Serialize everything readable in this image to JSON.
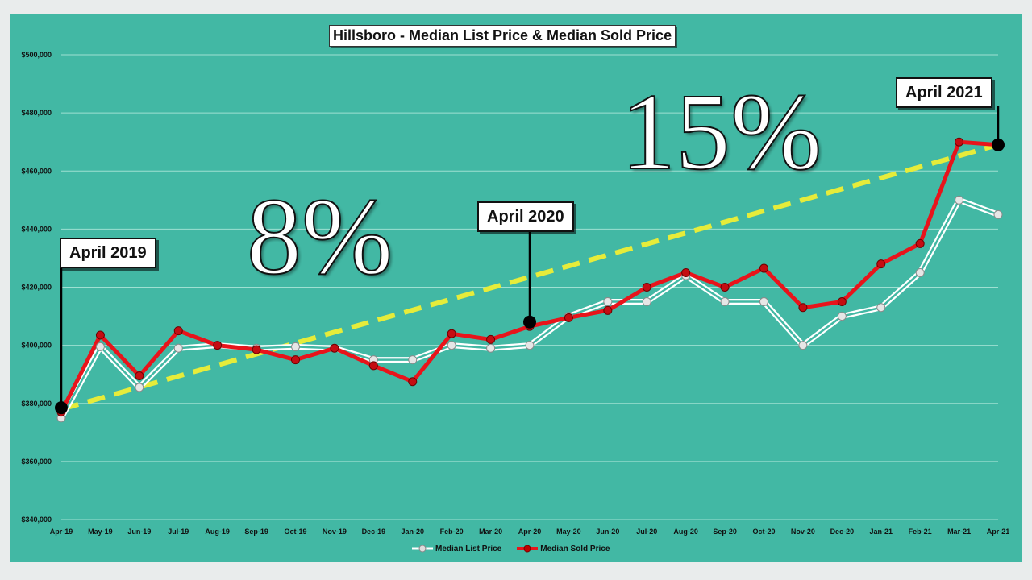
{
  "chart_data": {
    "type": "line",
    "title": "Hillsboro - Median List Price & Median Sold Price",
    "xlabel": "",
    "ylabel": "",
    "categories": [
      "Apr-19",
      "May-19",
      "Jun-19",
      "Jul-19",
      "Aug-19",
      "Sep-19",
      "Oct-19",
      "Nov-19",
      "Dec-19",
      "Jan-20",
      "Feb-20",
      "Mar-20",
      "Apr-20",
      "May-20",
      "Jun-20",
      "Jul-20",
      "Aug-20",
      "Sep-20",
      "Oct-20",
      "Nov-20",
      "Dec-20",
      "Jan-21",
      "Feb-21",
      "Mar-21",
      "Apr-21"
    ],
    "ylim": [
      340000,
      500000
    ],
    "yticks": [
      340000,
      360000,
      380000,
      400000,
      420000,
      440000,
      460000,
      480000,
      500000
    ],
    "ytick_labels": [
      "$340,000",
      "$360,000",
      "$380,000",
      "$400,000",
      "$420,000",
      "$440,000",
      "$460,000",
      "$480,000",
      "$500,000"
    ],
    "grid": true,
    "legend_position": "bottom",
    "series": [
      {
        "name": "Median List Price",
        "color": "#ffffff",
        "values": [
          375000,
          399500,
          385500,
          399000,
          400000,
          399000,
          399500,
          399000,
          395000,
          395000,
          400000,
          399000,
          400000,
          410000,
          415000,
          415000,
          424000,
          415000,
          415000,
          400000,
          410000,
          413000,
          425000,
          450000,
          445000
        ]
      },
      {
        "name": "Median Sold Price",
        "color": "#e8141b",
        "values": [
          377000,
          403500,
          389500,
          405000,
          400000,
          398500,
          395000,
          399000,
          393000,
          387500,
          404000,
          402000,
          406500,
          409500,
          412000,
          420000,
          425000,
          420000,
          426500,
          413000,
          415000,
          428000,
          435000,
          470000,
          469000
        ]
      }
    ],
    "trendlines": [
      {
        "from_index": 0,
        "from_value": 378000,
        "to_index": 24,
        "to_value": 469000,
        "color": "#e6ec3a",
        "style": "dashed"
      }
    ],
    "annotations": [
      {
        "label": "April 2019",
        "index": 0,
        "value": 378500
      },
      {
        "label": "April 2020",
        "index": 12,
        "value": 408000
      },
      {
        "label": "April 2021",
        "index": 24,
        "value": 469000
      }
    ],
    "percent_labels": [
      "8%",
      "15%"
    ]
  },
  "colors": {
    "plot_background": "#42b8a4",
    "gridline": "#9ee0d2",
    "trend": "#e6ec3a",
    "sold": "#e8141b",
    "list": "#ffffff"
  }
}
